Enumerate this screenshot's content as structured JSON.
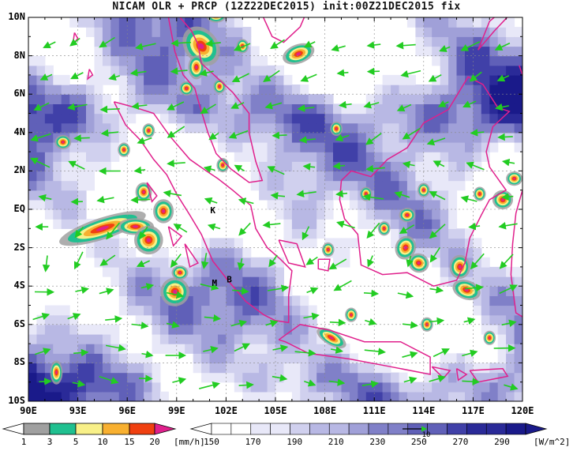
{
  "title": "NICAM OLR + PRCP (12Z22DEC2015) init:00Z21DEC2015 fix",
  "map": {
    "lat_labels": [
      "10N",
      "8N",
      "6N",
      "4N",
      "2N",
      "EQ",
      "2S",
      "4S",
      "6S",
      "8S",
      "10S"
    ],
    "lon_labels": [
      "90E",
      "93E",
      "96E",
      "99E",
      "102E",
      "105E",
      "108E",
      "111E",
      "114E",
      "117E",
      "120E"
    ],
    "station_labels": [
      {
        "text": "K",
        "lon": 101.2,
        "lat": -0.2
      },
      {
        "text": "M",
        "lon": 101.3,
        "lat": -4.0
      },
      {
        "text": "B",
        "lon": 102.2,
        "lat": -3.8
      }
    ],
    "colors": {
      "coast": "#e0208c",
      "wind": "#22cc22",
      "grid": "#888888"
    }
  },
  "precip_colorbar": {
    "ticks": [
      "1",
      "3",
      "5",
      "10",
      "15",
      "20"
    ],
    "unit": "[mm/h]",
    "colors": [
      "#a0a0a0",
      "#20c090",
      "#f8f088",
      "#f8b030",
      "#f04010",
      "#e0208c"
    ]
  },
  "olr_colorbar": {
    "ticks": [
      "150",
      "170",
      "190",
      "210",
      "230",
      "250",
      "270",
      "290"
    ],
    "unit": "[W/m^2]",
    "colors": [
      "#ffffff",
      "#e8e8f8",
      "#d0d0ee",
      "#b8b8e4",
      "#a0a0d8",
      "#8080c8",
      "#6060b8",
      "#4040a8",
      "#2a2a98",
      "#1a1a8a"
    ],
    "ref_vector": "10"
  }
}
